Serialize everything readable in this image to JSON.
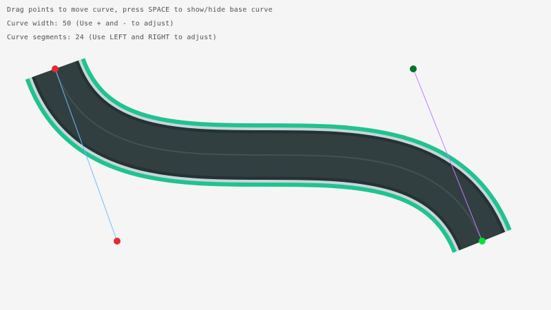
{
  "instructions": [
    "Drag points to move curve, press SPACE to show/hide base curve",
    "Curve width: 50 (Use + and - to adjust)",
    "Curve segments: 24 (Use LEFT and RIGHT to adjust)"
  ],
  "curve": {
    "width": 50,
    "segments": 24,
    "start": [
      80,
      100
    ],
    "start_tangent": [
      170,
      350
    ],
    "end_tangent": [
      600,
      100
    ],
    "end": [
      700,
      350
    ]
  },
  "colors": {
    "background": "#f5f5f5",
    "grass": "#22c28f",
    "curb": "#c3d7dc",
    "road_edge": "#283133",
    "road": "#323f40",
    "lane": "#485a5a",
    "start_point": "#e62937",
    "start_tangent_point": "#e62937",
    "end_point": "#00e430",
    "end_tangent_point": "#00752c",
    "start_line": "#66bfff",
    "end_line": "#c87aff"
  }
}
